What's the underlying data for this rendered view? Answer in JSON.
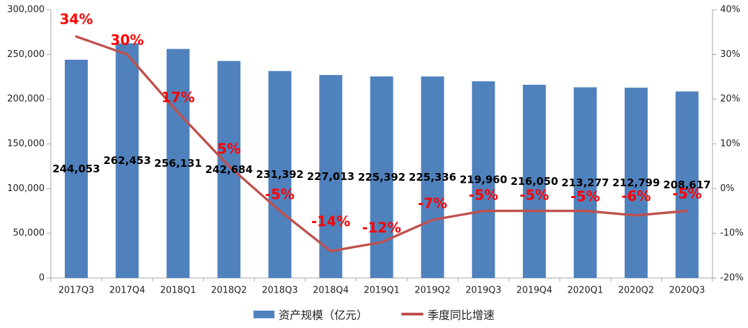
{
  "chart_data": {
    "type": "combo-bar-line",
    "categories": [
      "2017Q3",
      "2017Q4",
      "2018Q1",
      "2018Q2",
      "2018Q3",
      "2018Q4",
      "2019Q1",
      "2019Q2",
      "2019Q3",
      "2019Q4",
      "2020Q1",
      "2020Q2",
      "2020Q3"
    ],
    "series": [
      {
        "name": "资产规模（亿元）",
        "type": "bar",
        "color": "#4F81BD",
        "axis": "left",
        "values": [
          244053,
          262453,
          256131,
          242684,
          231392,
          227013,
          225392,
          225336,
          219960,
          216050,
          213277,
          212799,
          208617
        ],
        "labels": [
          "244,053",
          "262,453",
          "256,131",
          "242,684",
          "231,392",
          "227,013",
          "225,392",
          "225,336",
          "219,960",
          "216,050",
          "213,277",
          "212,799",
          "208,617"
        ],
        "label_color": "#000000"
      },
      {
        "name": "季度同比增速",
        "type": "line",
        "color": "#C0504D",
        "axis": "right",
        "values": [
          34,
          30,
          17,
          5,
          -5,
          -14,
          -12,
          -7,
          -5,
          -5,
          -5,
          -6,
          -5
        ],
        "labels": [
          "34%",
          "30%",
          "17%",
          "5%",
          "-5%",
          "-14%",
          "-12%",
          "-7%",
          "-5%",
          "-5%",
          "-5%",
          "-6%",
          "-5%"
        ],
        "label_color": "#FF0000"
      }
    ],
    "left_axis": {
      "min": 0,
      "max": 300000,
      "ticks": [
        "0",
        "50,000",
        "100,000",
        "150,000",
        "200,000",
        "250,000",
        "300,000"
      ]
    },
    "right_axis": {
      "min": -20,
      "max": 40,
      "ticks": [
        "-20%",
        "-10%",
        "0%",
        "10%",
        "20%",
        "30%",
        "40%"
      ]
    },
    "grid": "off",
    "legend_position": "bottom",
    "axis_color": "#A6A6A6",
    "tick_text_color": "#222222"
  }
}
